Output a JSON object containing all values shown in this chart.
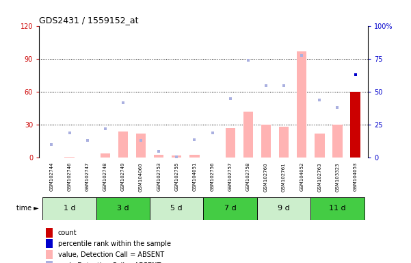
{
  "title": "GDS2431 / 1559152_at",
  "samples": [
    "GSM102744",
    "GSM102746",
    "GSM102747",
    "GSM102748",
    "GSM102749",
    "GSM104060",
    "GSM102753",
    "GSM102755",
    "GSM104051",
    "GSM102756",
    "GSM102757",
    "GSM102758",
    "GSM102760",
    "GSM102761",
    "GSM104052",
    "GSM102763",
    "GSM103323",
    "GSM104053"
  ],
  "time_groups": [
    {
      "label": "1 d",
      "start": 0,
      "end": 3,
      "light": true
    },
    {
      "label": "3 d",
      "start": 3,
      "end": 6,
      "light": false
    },
    {
      "label": "5 d",
      "start": 6,
      "end": 9,
      "light": true
    },
    {
      "label": "7 d",
      "start": 9,
      "end": 12,
      "light": false
    },
    {
      "label": "9 d",
      "start": 12,
      "end": 15,
      "light": true
    },
    {
      "label": "11 d",
      "start": 15,
      "end": 18,
      "light": false
    }
  ],
  "bar_values": [
    0.5,
    1.0,
    0.5,
    4.0,
    24.0,
    22.0,
    3.0,
    2.0,
    3.0,
    0.5,
    27.0,
    42.0,
    30.0,
    28.5,
    97.0,
    22.0,
    30.0,
    60.0
  ],
  "rank_dots": [
    10.0,
    19.0,
    13.0,
    22.0,
    42.0,
    13.0,
    5.0,
    0.5,
    14.0,
    19.0,
    45.0,
    74.0,
    55.0,
    55.0,
    78.0,
    44.0,
    38.0,
    63.0
  ],
  "last_bar_is_red": true,
  "last_rank_is_blue_dark": true,
  "ylim_left": [
    0,
    120
  ],
  "ylim_right": [
    0,
    100
  ],
  "bar_color_normal": "#ffb3b3",
  "bar_color_last": "#cc0000",
  "dot_color_absent": "#aab0e0",
  "dot_color_last": "#0000cc",
  "grid_color": "#000000",
  "bg_plot": "#ffffff",
  "bg_sample": "#c0c0c0",
  "bg_time_light": "#cceecc",
  "bg_time_dark": "#44cc44",
  "left_ytick_color": "#cc0000",
  "right_ytick_color": "#0000cc",
  "legend_labels": [
    "count",
    "percentile rank within the sample",
    "value, Detection Call = ABSENT",
    "rank, Detection Call = ABSENT"
  ],
  "legend_colors": [
    "#cc0000",
    "#0000cc",
    "#ffb3b3",
    "#aab0e0"
  ]
}
